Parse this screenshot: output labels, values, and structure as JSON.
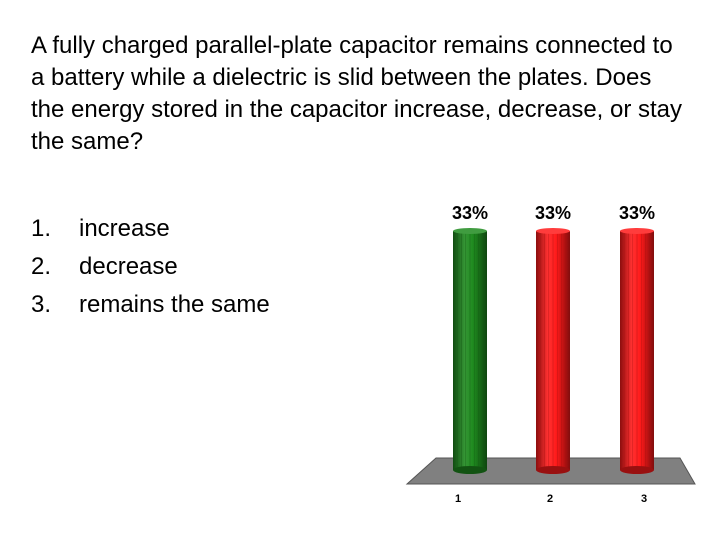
{
  "slide": {
    "question": "A fully charged parallel-plate capacitor remains connected to a battery while a dielectric is slid between the plates. Does the energy stored in the capacitor increase, decrease, or stay the same?",
    "answers": [
      {
        "number": "1.",
        "text": "increase"
      },
      {
        "number": "2.",
        "text": "decrease"
      },
      {
        "number": "3.",
        "text": "remains the same"
      }
    ]
  },
  "chart_data": {
    "type": "bar",
    "style": "3d-cylinder",
    "categories": [
      "1",
      "2",
      "3"
    ],
    "values": [
      33,
      33,
      33
    ],
    "value_labels": [
      "33%",
      "33%",
      "33%"
    ],
    "bar_colors": [
      "#1e8a1e",
      "#ff1a1a",
      "#ff1a1a"
    ],
    "floor_color": "#808080",
    "ylim": [
      0,
      33
    ],
    "grid": false,
    "legend": "none"
  }
}
